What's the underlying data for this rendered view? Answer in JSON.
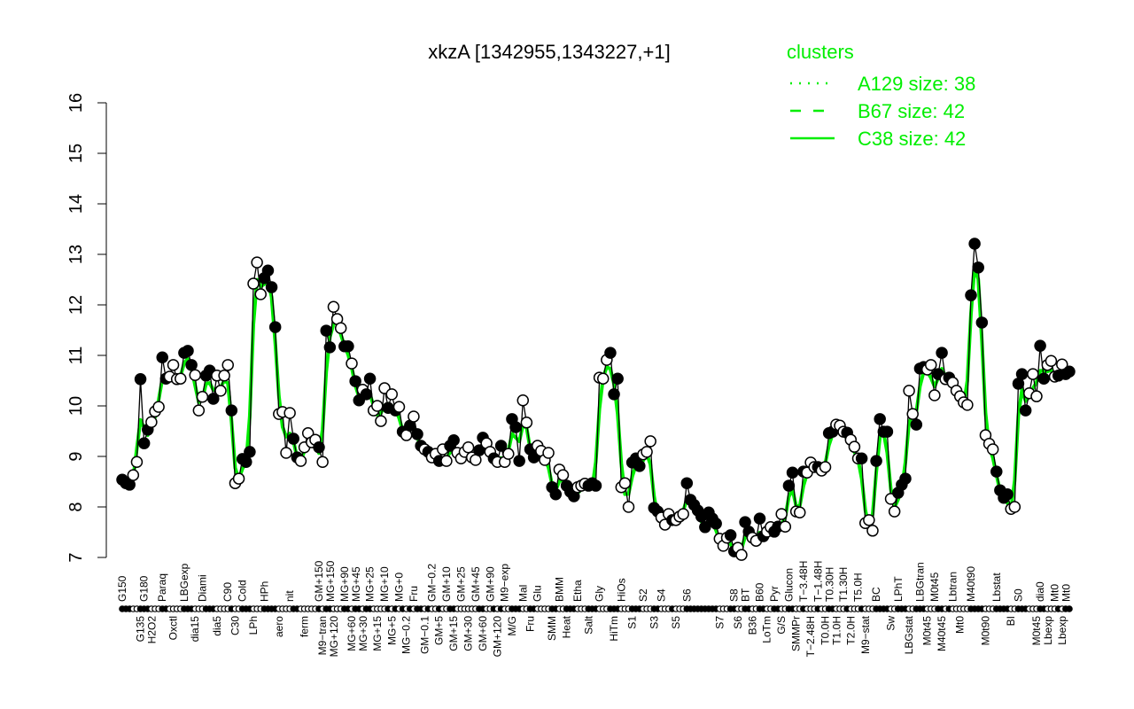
{
  "chart_data": {
    "type": "line",
    "title": "xkzA [1342955,1343227,+1]",
    "xlabel": "",
    "ylabel": "",
    "ylim": [
      7,
      16
    ],
    "yticks": [
      "7",
      "8",
      "9",
      "10",
      "11",
      "12",
      "13",
      "14",
      "15",
      "16"
    ],
    "grid": false,
    "legend": {
      "title": "clusters",
      "placement": "top-right",
      "color": "#00ee00",
      "entries": [
        {
          "label": "A129 size: 38",
          "style": "dotted"
        },
        {
          "label": "B67 size: 42",
          "style": "dashed"
        },
        {
          "label": "C38 size: 42",
          "style": "solid"
        }
      ]
    },
    "colors": {
      "cluster_line": "#00ee00",
      "profile_line": "#000000",
      "marker_fill": "#000000",
      "marker_open": "#ffffff"
    },
    "points": [
      [
        8.54,
        1,
        "G150"
      ],
      [
        8.47,
        1,
        ""
      ],
      [
        8.44,
        1,
        ""
      ],
      [
        8.63,
        0,
        ""
      ],
      [
        8.89,
        0,
        ""
      ],
      [
        10.53,
        1,
        "G135"
      ],
      [
        9.26,
        1,
        "G180"
      ],
      [
        9.53,
        1,
        ""
      ],
      [
        9.68,
        0,
        "H2O2"
      ],
      [
        9.89,
        0,
        ""
      ],
      [
        9.98,
        0,
        ""
      ],
      [
        10.96,
        1,
        "Paraq"
      ],
      [
        10.54,
        1,
        ""
      ],
      [
        10.58,
        0,
        ""
      ],
      [
        10.81,
        0,
        "Oxctl"
      ],
      [
        10.53,
        0,
        ""
      ],
      [
        10.54,
        0,
        ""
      ],
      [
        11.05,
        1,
        "LBGexp"
      ],
      [
        11.09,
        1,
        ""
      ],
      [
        10.81,
        1,
        ""
      ],
      [
        10.61,
        0,
        "dia15"
      ],
      [
        9.91,
        0,
        ""
      ],
      [
        10.18,
        0,
        "Diami"
      ],
      [
        10.6,
        1,
        ""
      ],
      [
        10.7,
        1,
        ""
      ],
      [
        10.14,
        1,
        ""
      ],
      [
        10.6,
        0,
        "dia5"
      ],
      [
        10.3,
        0,
        ""
      ],
      [
        10.6,
        0,
        ""
      ],
      [
        10.81,
        0,
        "C90"
      ],
      [
        9.91,
        1,
        ""
      ],
      [
        8.47,
        0,
        "C30"
      ],
      [
        8.56,
        0,
        ""
      ],
      [
        8.95,
        1,
        "Cold"
      ],
      [
        8.89,
        1,
        ""
      ],
      [
        9.09,
        1,
        ""
      ],
      [
        12.42,
        0,
        "LPh"
      ],
      [
        12.84,
        0,
        ""
      ],
      [
        12.21,
        0,
        ""
      ],
      [
        12.53,
        1,
        "HPh"
      ],
      [
        12.68,
        1,
        ""
      ],
      [
        12.35,
        1,
        ""
      ],
      [
        11.56,
        1,
        ""
      ],
      [
        9.84,
        0,
        "aero"
      ],
      [
        9.88,
        0,
        ""
      ],
      [
        9.07,
        0,
        ""
      ],
      [
        9.86,
        0,
        "nit"
      ],
      [
        9.35,
        1,
        ""
      ],
      [
        8.98,
        1,
        ""
      ],
      [
        8.91,
        0,
        ""
      ],
      [
        9.18,
        0,
        "ferm"
      ],
      [
        9.46,
        0,
        ""
      ],
      [
        9.28,
        0,
        ""
      ],
      [
        9.33,
        0,
        ""
      ],
      [
        9.18,
        1,
        "GM+150"
      ],
      [
        8.89,
        0,
        "M9−tran"
      ],
      [
        11.49,
        1,
        "MG+150"
      ],
      [
        11.16,
        1,
        ""
      ],
      [
        11.96,
        0,
        "MG+120"
      ],
      [
        11.72,
        0,
        ""
      ],
      [
        11.54,
        0,
        ""
      ],
      [
        11.18,
        1,
        "MG+90"
      ],
      [
        11.18,
        1,
        ""
      ],
      [
        10.84,
        0,
        "MG+60"
      ],
      [
        10.49,
        1,
        "MG+45"
      ],
      [
        10.11,
        1,
        ""
      ],
      [
        10.32,
        0,
        "MG+30"
      ],
      [
        10.23,
        1,
        ""
      ],
      [
        10.54,
        1,
        "MG+25"
      ],
      [
        9.91,
        0,
        ""
      ],
      [
        10.0,
        0,
        "MG+15"
      ],
      [
        9.7,
        0,
        ""
      ],
      [
        10.35,
        0,
        "MG+10"
      ],
      [
        9.96,
        1,
        ""
      ],
      [
        10.23,
        0,
        "MG+5"
      ],
      [
        9.91,
        1,
        ""
      ],
      [
        9.98,
        0,
        "MG+0"
      ],
      [
        9.49,
        1,
        ""
      ],
      [
        9.42,
        0,
        "MG−0.2"
      ],
      [
        9.61,
        1,
        ""
      ],
      [
        9.79,
        0,
        "Fru"
      ],
      [
        9.44,
        1,
        ""
      ],
      [
        9.21,
        1,
        ""
      ],
      [
        9.14,
        0,
        "GM−0.1"
      ],
      [
        9.09,
        1,
        ""
      ],
      [
        8.98,
        0,
        "GM−0.2"
      ],
      [
        9.05,
        0,
        ""
      ],
      [
        8.91,
        1,
        "GM+5"
      ],
      [
        9.14,
        0,
        ""
      ],
      [
        8.91,
        0,
        "GM+10"
      ],
      [
        9.21,
        1,
        ""
      ],
      [
        9.32,
        1,
        "GM+15"
      ],
      [
        9.07,
        0,
        ""
      ],
      [
        8.96,
        0,
        "GM+25"
      ],
      [
        9.09,
        0,
        ""
      ],
      [
        9.18,
        0,
        "GM+30"
      ],
      [
        8.98,
        0,
        ""
      ],
      [
        8.93,
        0,
        "GM+45"
      ],
      [
        9.12,
        1,
        ""
      ],
      [
        9.37,
        1,
        "GM+60"
      ],
      [
        9.26,
        0,
        ""
      ],
      [
        9.09,
        0,
        "GM+90"
      ],
      [
        8.96,
        1,
        ""
      ],
      [
        8.89,
        0,
        "GM+120"
      ],
      [
        9.21,
        1,
        ""
      ],
      [
        8.89,
        0,
        "M9−exp"
      ],
      [
        9.05,
        0,
        ""
      ],
      [
        9.74,
        1,
        "M/G"
      ],
      [
        9.58,
        1,
        ""
      ],
      [
        8.91,
        1,
        ""
      ],
      [
        10.11,
        0,
        "Mal"
      ],
      [
        9.67,
        0,
        ""
      ],
      [
        9.14,
        1,
        "Fru"
      ],
      [
        8.98,
        1,
        ""
      ],
      [
        9.21,
        0,
        "Glu"
      ],
      [
        9.11,
        0,
        ""
      ],
      [
        8.93,
        0,
        ""
      ],
      [
        9.07,
        0,
        ""
      ],
      [
        8.39,
        1,
        "SMM"
      ],
      [
        8.25,
        1,
        ""
      ],
      [
        8.74,
        0,
        "BMM"
      ],
      [
        8.63,
        0,
        ""
      ],
      [
        8.42,
        1,
        "Heat"
      ],
      [
        8.3,
        1,
        ""
      ],
      [
        8.21,
        1,
        ""
      ],
      [
        8.39,
        0,
        "Etha"
      ],
      [
        8.42,
        0,
        ""
      ],
      [
        8.46,
        0,
        ""
      ],
      [
        8.42,
        1,
        "Salt"
      ],
      [
        8.47,
        1,
        ""
      ],
      [
        8.42,
        1,
        ""
      ],
      [
        10.56,
        0,
        "Gly"
      ],
      [
        10.54,
        0,
        ""
      ],
      [
        10.91,
        0,
        ""
      ],
      [
        11.05,
        1,
        ""
      ],
      [
        10.23,
        1,
        "HiTm"
      ],
      [
        10.54,
        1,
        ""
      ],
      [
        8.39,
        0,
        "HiOs"
      ],
      [
        8.47,
        0,
        ""
      ],
      [
        8.0,
        0,
        ""
      ],
      [
        8.88,
        1,
        "S1"
      ],
      [
        8.96,
        1,
        ""
      ],
      [
        8.81,
        1,
        ""
      ],
      [
        9.04,
        0,
        "S2"
      ],
      [
        9.09,
        0,
        ""
      ],
      [
        9.3,
        0,
        ""
      ],
      [
        7.98,
        1,
        "S3"
      ],
      [
        7.91,
        1,
        ""
      ],
      [
        7.79,
        0,
        "S4"
      ],
      [
        7.65,
        0,
        ""
      ],
      [
        7.86,
        0,
        ""
      ],
      [
        7.74,
        1,
        ""
      ],
      [
        7.74,
        0,
        "S5"
      ],
      [
        7.81,
        0,
        ""
      ],
      [
        7.86,
        0,
        ""
      ],
      [
        8.47,
        1,
        "S6"
      ],
      [
        8.14,
        1,
        ""
      ],
      [
        8.04,
        1,
        ""
      ],
      [
        7.93,
        1,
        ""
      ],
      [
        7.81,
        1,
        ""
      ],
      [
        7.6,
        1,
        ""
      ],
      [
        7.89,
        1,
        ""
      ],
      [
        7.77,
        1,
        ""
      ],
      [
        7.67,
        1,
        ""
      ],
      [
        7.37,
        0,
        "S7"
      ],
      [
        7.23,
        0,
        ""
      ],
      [
        7.39,
        0,
        ""
      ],
      [
        7.44,
        1,
        ""
      ],
      [
        7.12,
        1,
        "S8"
      ],
      [
        7.19,
        0,
        "S6"
      ],
      [
        7.05,
        0,
        ""
      ],
      [
        7.7,
        1,
        "BT"
      ],
      [
        7.51,
        1,
        ""
      ],
      [
        7.39,
        0,
        "B36"
      ],
      [
        7.33,
        0,
        ""
      ],
      [
        7.77,
        1,
        "B60"
      ],
      [
        7.42,
        1,
        ""
      ],
      [
        7.51,
        0,
        "LoTm"
      ],
      [
        7.6,
        0,
        ""
      ],
      [
        7.51,
        1,
        "Pyr"
      ],
      [
        7.61,
        1,
        ""
      ],
      [
        7.86,
        0,
        "G/S"
      ],
      [
        7.61,
        0,
        ""
      ],
      [
        8.42,
        1,
        "Glucon"
      ],
      [
        8.68,
        1,
        ""
      ],
      [
        7.91,
        0,
        "SMMPr"
      ],
      [
        7.89,
        0,
        ""
      ],
      [
        8.7,
        1,
        "T−3.48H"
      ],
      [
        8.68,
        0,
        ""
      ],
      [
        8.88,
        0,
        "T−2.48H"
      ],
      [
        8.79,
        0,
        ""
      ],
      [
        8.79,
        1,
        "T−1.48H"
      ],
      [
        8.72,
        0,
        ""
      ],
      [
        8.79,
        0,
        "T0.0H"
      ],
      [
        9.46,
        1,
        "T0.30H"
      ],
      [
        9.49,
        1,
        ""
      ],
      [
        9.63,
        0,
        "T1.0H"
      ],
      [
        9.61,
        0,
        ""
      ],
      [
        9.49,
        0,
        "T1.30H"
      ],
      [
        9.47,
        1,
        ""
      ],
      [
        9.33,
        0,
        "T2.0H"
      ],
      [
        9.19,
        0,
        ""
      ],
      [
        8.96,
        0,
        "T5.0H"
      ],
      [
        8.96,
        1,
        ""
      ],
      [
        7.68,
        0,
        "M9−stat"
      ],
      [
        7.74,
        0,
        ""
      ],
      [
        7.53,
        0,
        ""
      ],
      [
        8.91,
        1,
        "BC"
      ],
      [
        9.74,
        1,
        ""
      ],
      [
        9.49,
        1,
        ""
      ],
      [
        9.49,
        1,
        ""
      ],
      [
        8.16,
        0,
        "Sw"
      ],
      [
        7.91,
        0,
        ""
      ],
      [
        8.28,
        1,
        "LPhT"
      ],
      [
        8.44,
        1,
        ""
      ],
      [
        8.56,
        1,
        ""
      ],
      [
        10.3,
        0,
        "LBGstat"
      ],
      [
        9.84,
        0,
        ""
      ],
      [
        9.63,
        1,
        ""
      ],
      [
        10.74,
        1,
        "LBGtran"
      ],
      [
        10.77,
        1,
        ""
      ],
      [
        10.72,
        0,
        "M0t45"
      ],
      [
        10.81,
        0,
        ""
      ],
      [
        10.21,
        0,
        "M0t45"
      ],
      [
        10.63,
        1,
        ""
      ],
      [
        11.05,
        1,
        "M40t45"
      ],
      [
        10.53,
        0,
        ""
      ],
      [
        10.56,
        1,
        ""
      ],
      [
        10.46,
        0,
        "Lbtran"
      ],
      [
        10.3,
        0,
        ""
      ],
      [
        10.19,
        0,
        "Mt0"
      ],
      [
        10.07,
        0,
        ""
      ],
      [
        10.02,
        0,
        ""
      ],
      [
        12.19,
        1,
        "M40t90"
      ],
      [
        13.21,
        1,
        ""
      ],
      [
        12.74,
        1,
        ""
      ],
      [
        11.65,
        1,
        ""
      ],
      [
        9.42,
        0,
        "M0t90"
      ],
      [
        9.25,
        0,
        ""
      ],
      [
        9.14,
        0,
        ""
      ],
      [
        8.7,
        1,
        "Lbstat"
      ],
      [
        8.33,
        1,
        ""
      ],
      [
        8.18,
        1,
        ""
      ],
      [
        8.25,
        1,
        ""
      ],
      [
        7.96,
        0,
        "BI"
      ],
      [
        8.0,
        0,
        ""
      ],
      [
        10.44,
        1,
        "S0"
      ],
      [
        10.63,
        1,
        ""
      ],
      [
        9.91,
        1,
        ""
      ],
      [
        10.25,
        0,
        ""
      ],
      [
        10.63,
        0,
        ""
      ],
      [
        10.19,
        0,
        "M0t45"
      ],
      [
        11.19,
        1,
        "dia0"
      ],
      [
        10.54,
        1,
        ""
      ],
      [
        10.81,
        0,
        "Lbexp"
      ],
      [
        10.89,
        0,
        ""
      ],
      [
        10.58,
        0,
        "Mt0"
      ],
      [
        10.6,
        1,
        ""
      ],
      [
        10.82,
        0,
        "Lbexp"
      ],
      [
        10.63,
        1,
        "Mt0"
      ],
      [
        10.68,
        1,
        ""
      ]
    ]
  }
}
